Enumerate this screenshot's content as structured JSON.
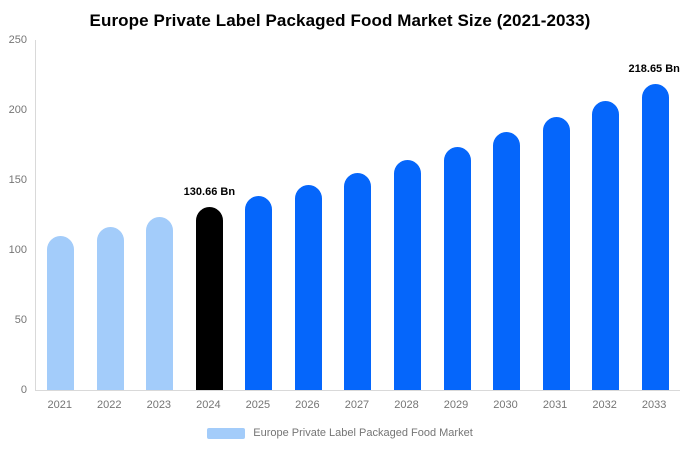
{
  "chart": {
    "title": "Europe Private Label Packaged Food Market Size (2021-2033)",
    "legend": {
      "label": "Europe Private Label Packaged Food Market",
      "position": "bottom"
    }
  },
  "chart_data": {
    "type": "bar",
    "title": "Europe Private Label Packaged Food Market Size (2021-2033)",
    "unit": "Bn",
    "categories": [
      "2021",
      "2022",
      "2023",
      "2024",
      "2025",
      "2026",
      "2027",
      "2028",
      "2029",
      "2030",
      "2031",
      "2032",
      "2033"
    ],
    "values": [
      110.0,
      116.5,
      123.4,
      130.66,
      138.35,
      146.5,
      155.1,
      164.25,
      173.9,
      184.15,
      195.0,
      206.5,
      218.65
    ],
    "roles": [
      "historical",
      "historical",
      "historical",
      "base_year",
      "forecast",
      "forecast",
      "forecast",
      "forecast",
      "forecast",
      "forecast",
      "forecast",
      "forecast",
      "forecast"
    ],
    "annotations": [
      {
        "index": 3,
        "text": "130.66 Bn",
        "align": "center"
      },
      {
        "index": 12,
        "text": "218.65 Bn",
        "align": "right"
      }
    ],
    "yticks": [
      0,
      50,
      100,
      150,
      200,
      250
    ],
    "ylim": [
      0,
      250
    ],
    "grid": false,
    "legend_position": "bottom",
    "colors": {
      "historical": "#a3ccfa",
      "base_year": "#000000",
      "forecast": "#0566fb",
      "axis_line": "#d9d9d9",
      "tick_text": "#757575",
      "annotation_text": "#000000",
      "legend_swatch": "#a3ccfa"
    }
  }
}
